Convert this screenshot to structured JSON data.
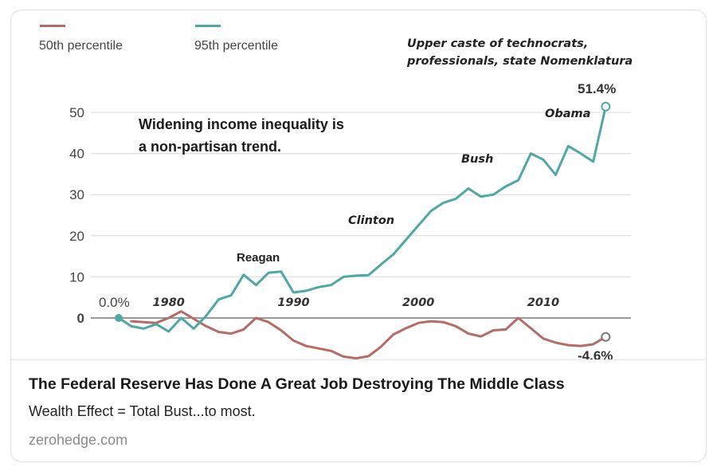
{
  "card": {
    "headline": "The Federal Reserve Has Done A Great Job Destroying The Middle Class",
    "subline": "Wealth Effect = Total Bust...to most.",
    "source": "zerohedge.com"
  },
  "colors": {
    "p50": "#b56b66",
    "p95": "#4fa8a4",
    "grid": "#d9d9d9",
    "text": "#333333"
  },
  "chart_data": {
    "type": "line",
    "title": "",
    "xlabel": "",
    "ylabel": "",
    "ylim": [
      -10,
      55
    ],
    "xlim": [
      1976,
      2016
    ],
    "y_ticks": [
      "0",
      "10",
      "20",
      "30",
      "40",
      "50"
    ],
    "x_ticks": [
      "1980",
      "1990",
      "2000",
      "2010"
    ],
    "legend": {
      "placement": "top-left",
      "entries": [
        "50th percentile",
        "95th percentile"
      ]
    },
    "series": [
      {
        "name": "50th percentile",
        "x": [
          1977,
          1978,
          1979,
          1980,
          1981,
          1982,
          1983,
          1984,
          1985,
          1986,
          1987,
          1988,
          1989,
          1990,
          1991,
          1992,
          1993,
          1994,
          1995,
          1996,
          1997,
          1998,
          1999,
          2000,
          2001,
          2002,
          2003,
          2004,
          2005,
          2006,
          2007,
          2008,
          2009,
          2010,
          2011,
          2012,
          2013,
          2014,
          2015
        ],
        "y": [
          -0.8,
          -1.0,
          -1.2,
          0.0,
          1.6,
          -0.2,
          -2.0,
          -3.4,
          -3.8,
          -2.8,
          0.0,
          -1.0,
          -3.0,
          -5.5,
          -6.8,
          -7.4,
          -8.0,
          -9.4,
          -9.8,
          -9.3,
          -7.0,
          -4.0,
          -2.5,
          -1.2,
          -0.8,
          -1.0,
          -2.0,
          -3.8,
          -4.5,
          -3.0,
          -2.8,
          0.0,
          -2.5,
          -5.0,
          -6.0,
          -6.6,
          -6.8,
          -6.4,
          -4.6
        ]
      },
      {
        "name": "95th percentile",
        "x": [
          1976,
          1977,
          1978,
          1979,
          1980,
          1981,
          1982,
          1983,
          1984,
          1985,
          1986,
          1987,
          1988,
          1989,
          1990,
          1991,
          1992,
          1993,
          1994,
          1995,
          1996,
          1997,
          1998,
          1999,
          2000,
          2001,
          2002,
          2003,
          2004,
          2005,
          2006,
          2007,
          2008,
          2009,
          2010,
          2011,
          2012,
          2013,
          2014,
          2015
        ],
        "y": [
          0.0,
          -2.0,
          -2.6,
          -1.5,
          -3.3,
          0.0,
          -2.6,
          0.5,
          4.5,
          5.5,
          10.5,
          8.0,
          11.0,
          11.3,
          6.2,
          6.6,
          7.5,
          8.0,
          10.0,
          10.3,
          10.4,
          13.0,
          15.5,
          19.0,
          22.5,
          26.0,
          28.0,
          29.0,
          31.5,
          29.5,
          30.0,
          32.0,
          33.5,
          40.0,
          38.5,
          34.8,
          41.8,
          40.0,
          38.0,
          51.4
        ]
      }
    ],
    "data_labels": {
      "start": "0.0%",
      "p95_end": "51.4%",
      "p50_end": "-4.6%"
    },
    "annotations": {
      "note_line1": "Widening income inequality is",
      "note_line2": "a  non-partisan trend.",
      "caste_line1": "Upper caste of technocrats,",
      "caste_line2": "professionals, state Nomenklatura",
      "reagan": "Reagan",
      "clinton": "Clinton",
      "bush": "Bush",
      "obama": "Obama"
    }
  }
}
